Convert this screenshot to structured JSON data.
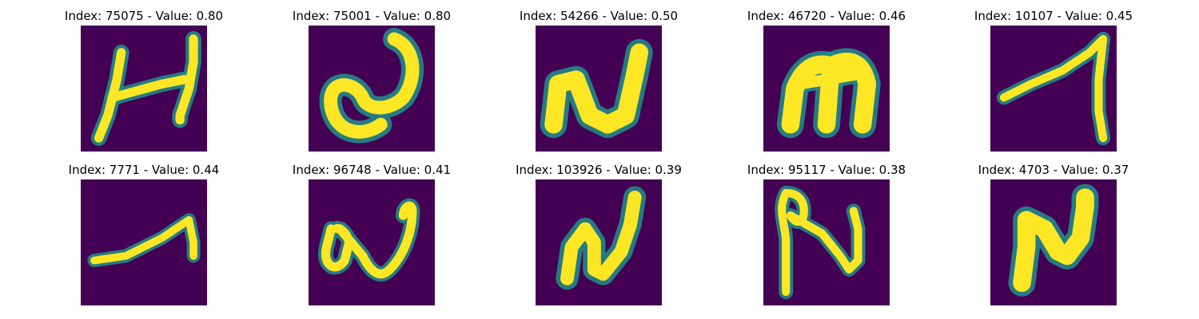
{
  "figure": {
    "colormap": "viridis",
    "background_color": "#440154",
    "stroke_color": "#fde725",
    "edge_colors": [
      "#21918c",
      "#5ec962",
      "#3b528b"
    ],
    "panels": [
      {
        "title": "Index: 75075 - Value: 0.80",
        "glyph": "H-like handwritten character"
      },
      {
        "title": "Index: 75001 - Value: 0.80",
        "glyph": "loop-shaped handwritten character"
      },
      {
        "title": "Index: 54266 - Value: 0.50",
        "glyph": "N/U-like handwritten character"
      },
      {
        "title": "Index: 46720 - Value: 0.46",
        "glyph": "m-like handwritten character"
      },
      {
        "title": "Index: 10107 - Value: 0.45",
        "glyph": "thin slanted handwritten character"
      },
      {
        "title": "Index: 7771 - Value: 0.44",
        "glyph": "thin curved stroke"
      },
      {
        "title": "Index: 96748 - Value: 0.41",
        "glyph": "w-like handwritten character"
      },
      {
        "title": "Index: 103926 - Value: 0.39",
        "glyph": "N-like handwritten character"
      },
      {
        "title": "Index: 95117 - Value: 0.38",
        "glyph": "looped N-like handwritten character"
      },
      {
        "title": "Index: 4703 - Value: 0.37",
        "glyph": "N-like handwritten character"
      }
    ]
  }
}
